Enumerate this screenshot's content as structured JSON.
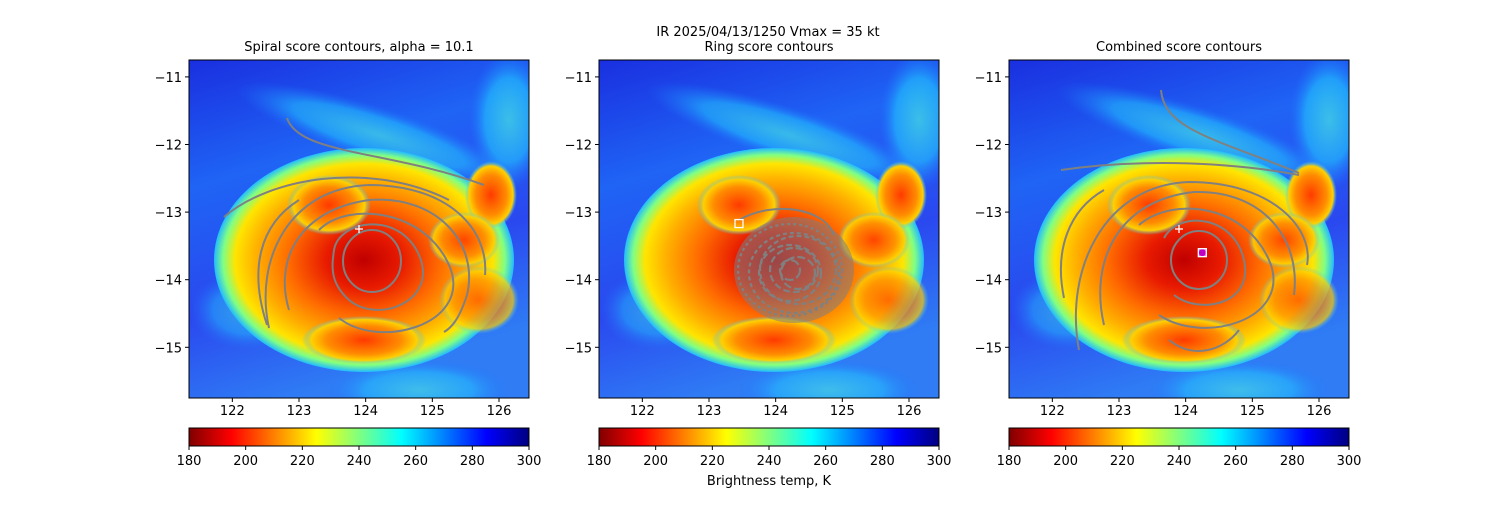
{
  "figure": {
    "suptitle_line1": "IR  2025/04/13/1250    Vmax = 35 kt",
    "colorbar_label": "Brightness temp, K",
    "colormap": "jet_r"
  },
  "chart_data": [
    {
      "type": "heatmap",
      "title": "Spiral score contours, alpha = 10.1",
      "xlim": [
        121.35,
        126.45
      ],
      "ylim": [
        -15.75,
        -10.75
      ],
      "xticks": [
        122,
        123,
        124,
        125,
        126
      ],
      "yticks": [
        -11,
        -12,
        -13,
        -14,
        -15
      ],
      "colorbar": {
        "min": 180,
        "max": 300,
        "ticks": [
          180,
          200,
          220,
          240,
          260,
          280,
          300
        ]
      },
      "center_marker": {
        "symbol": "+",
        "x": 123.9,
        "y": -13.25
      },
      "contour_color": "#808080"
    },
    {
      "type": "heatmap",
      "title": "Ring score contours",
      "xlim": [
        121.35,
        126.45
      ],
      "ylim": [
        -15.75,
        -10.75
      ],
      "xticks": [
        122,
        123,
        124,
        125,
        126
      ],
      "yticks": [
        -11,
        -12,
        -13,
        -14,
        -15
      ],
      "colorbar": {
        "min": 180,
        "max": 300,
        "ticks": [
          180,
          200,
          220,
          240,
          260,
          280,
          300
        ]
      },
      "center_marker": {
        "symbol": "square",
        "x": 123.45,
        "y": -13.17
      },
      "contour_color": "#808080"
    },
    {
      "type": "heatmap",
      "title": "Combined score contours",
      "xlim": [
        121.35,
        126.45
      ],
      "ylim": [
        -15.75,
        -10.75
      ],
      "xticks": [
        122,
        123,
        124,
        125,
        126
      ],
      "yticks": [
        -11,
        -12,
        -13,
        -14,
        -15
      ],
      "colorbar": {
        "min": 180,
        "max": 300,
        "ticks": [
          180,
          200,
          220,
          240,
          260,
          280,
          300
        ]
      },
      "center_marker": {
        "symbol": "+",
        "x": 123.9,
        "y": -13.25
      },
      "second_marker": {
        "symbol": "square",
        "x": 124.25,
        "y": -13.6
      },
      "contour_color": "#808080"
    }
  ]
}
